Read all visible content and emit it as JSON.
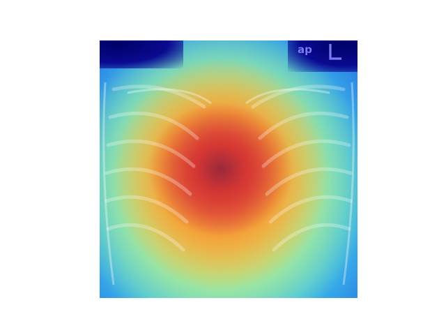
{
  "image": {
    "description_kind": "chest-xray-heatmap-overlay",
    "markers": {
      "projection_label": "ap",
      "side_label": "L"
    },
    "colormap": "jet",
    "colors": {
      "hot": "#e8453a",
      "warm": "#f6d24a",
      "mid": "#52d8e0",
      "cold": "#1a1aa8",
      "marker": "#7b7bf0"
    }
  }
}
